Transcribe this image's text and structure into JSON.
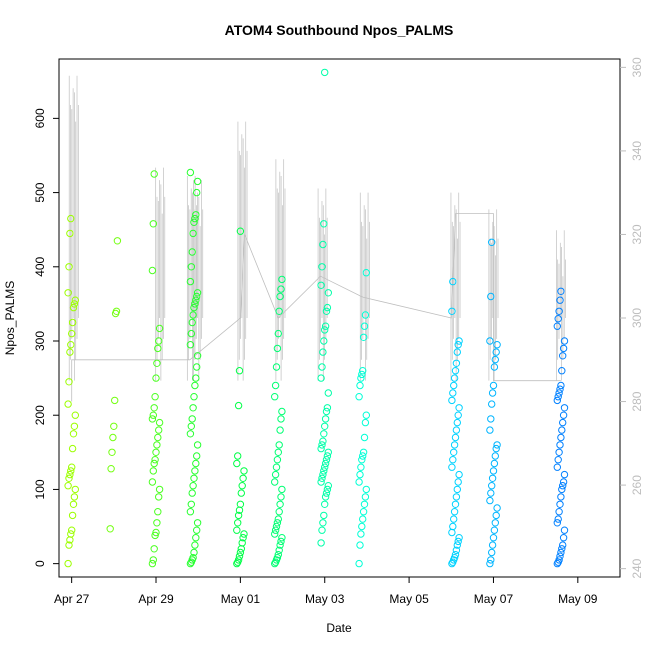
{
  "chart_data": {
    "type": "scatter",
    "title": "ATOM4 Southbound Npos_PALMS",
    "xlabel": "Date",
    "ylabel": "Npos_PALMS",
    "x_ticks": [
      "Apr 27",
      "Apr 29",
      "May 01",
      "May 03",
      "May 05",
      "May 07",
      "May 09"
    ],
    "y_ticks": [
      0,
      100,
      200,
      300,
      400,
      500,
      600
    ],
    "y2_ticks": [
      240,
      260,
      280,
      300,
      320,
      340,
      360
    ],
    "xlim_days": [
      26.7,
      40.0
    ],
    "ylim": [
      -18,
      680
    ],
    "y2lim": [
      238,
      362
    ],
    "grid": false,
    "legend": "none",
    "scatter_series": {
      "name": "Npos_PALMS",
      "marker": "open-circle",
      "color_gradient": [
        "#9cff00",
        "#00ff40",
        "#00ffff",
        "#0080ff"
      ],
      "clusters": [
        {
          "x": "Apr 27",
          "x_day": 27.0,
          "y": [
            0,
            25,
            32,
            40,
            45,
            65,
            80,
            90,
            100,
            105,
            115,
            120,
            125,
            130,
            155,
            175,
            185,
            200,
            215,
            245,
            285,
            295,
            310,
            325,
            345,
            350,
            355,
            365,
            400,
            445,
            465
          ]
        },
        {
          "x": "Apr 28",
          "x_day": 28.0,
          "y": [
            47,
            128,
            150,
            170,
            185,
            220,
            337,
            340,
            435
          ]
        },
        {
          "x": "Apr 29",
          "x_day": 29.0,
          "y": [
            0,
            5,
            20,
            38,
            42,
            55,
            70,
            90,
            100,
            110,
            125,
            135,
            140,
            150,
            160,
            170,
            180,
            190,
            195,
            200,
            210,
            225,
            250,
            270,
            290,
            300,
            317,
            395,
            458,
            525
          ]
        },
        {
          "x": "Apr 30",
          "x_day": 29.9,
          "y": [
            0,
            2,
            5,
            8,
            15,
            25,
            35,
            45,
            55,
            70,
            80,
            95,
            105,
            115,
            125,
            135,
            145,
            160,
            175,
            185,
            195,
            210,
            225,
            240,
            250,
            265,
            280,
            295,
            310,
            325,
            335,
            345,
            350,
            355,
            360,
            365,
            380,
            400,
            420,
            445,
            460,
            465,
            470,
            500,
            515,
            527
          ]
        },
        {
          "x": "May 01",
          "x_day": 31.0,
          "y": [
            0,
            2,
            5,
            10,
            15,
            20,
            28,
            35,
            40,
            45,
            55,
            65,
            72,
            80,
            95,
            105,
            115,
            125,
            135,
            145,
            213,
            260,
            448
          ]
        },
        {
          "x": "May 02",
          "x_day": 31.9,
          "y": [
            0,
            2,
            5,
            8,
            12,
            18,
            25,
            30,
            35,
            40,
            45,
            50,
            55,
            60,
            70,
            80,
            90,
            100,
            110,
            120,
            130,
            140,
            150,
            160,
            180,
            195,
            205,
            225,
            240,
            265,
            290,
            310,
            340,
            360,
            370,
            383
          ]
        },
        {
          "x": "May 03",
          "x_day": 33.0,
          "y": [
            28,
            45,
            55,
            65,
            80,
            90,
            95,
            100,
            105,
            110,
            115,
            120,
            125,
            130,
            135,
            140,
            145,
            150,
            155,
            160,
            165,
            175,
            185,
            195,
            205,
            210,
            230,
            250,
            265,
            285,
            300,
            315,
            320,
            340,
            345,
            365,
            375,
            400,
            430,
            458,
            662
          ]
        },
        {
          "x": "May 04",
          "x_day": 33.9,
          "y": [
            0,
            25,
            40,
            50,
            60,
            70,
            80,
            90,
            100,
            110,
            120,
            130,
            140,
            145,
            150,
            170,
            190,
            200,
            225,
            240,
            250,
            255,
            260,
            305,
            320,
            335,
            392
          ]
        },
        {
          "x": "May 06",
          "x_day": 36.1,
          "y": [
            0,
            2,
            5,
            8,
            12,
            18,
            25,
            30,
            35,
            42,
            50,
            60,
            70,
            80,
            90,
            100,
            110,
            120,
            130,
            140,
            150,
            160,
            170,
            180,
            190,
            200,
            210,
            220,
            230,
            240,
            250,
            260,
            270,
            285,
            295,
            300,
            340,
            380
          ]
        },
        {
          "x": "May 07",
          "x_day": 37.0,
          "y": [
            0,
            5,
            15,
            25,
            35,
            45,
            55,
            65,
            75,
            85,
            95,
            105,
            115,
            125,
            135,
            145,
            155,
            160,
            180,
            195,
            215,
            230,
            240,
            265,
            275,
            285,
            295,
            300,
            360,
            433
          ]
        },
        {
          "x": "May 09",
          "x_day": 38.6,
          "y": [
            0,
            2,
            5,
            10,
            15,
            20,
            25,
            35,
            45,
            55,
            60,
            70,
            80,
            90,
            100,
            105,
            110,
            120,
            130,
            140,
            150,
            160,
            170,
            180,
            190,
            200,
            210,
            220,
            225,
            230,
            235,
            240,
            260,
            280,
            290,
            300,
            320,
            330,
            340,
            355,
            367
          ]
        }
      ]
    },
    "line_series": {
      "name": "secondary axis",
      "color": "#bfbfbf",
      "axis": "right",
      "points": [
        {
          "x_day": 27.0,
          "y2": 280
        },
        {
          "x_day": 27.0,
          "y2": 290
        },
        {
          "x_day": 28.0,
          "y2": 290
        },
        {
          "x_day": 29.1,
          "y2": 290
        },
        {
          "x_day": 29.8,
          "y2": 290
        },
        {
          "x_day": 31.0,
          "y2": 300
        },
        {
          "x_day": 31.1,
          "y2": 320
        },
        {
          "x_day": 31.9,
          "y2": 300
        },
        {
          "x_day": 32.9,
          "y2": 310
        },
        {
          "x_day": 33.9,
          "y2": 305
        },
        {
          "x_day": 36.0,
          "y2": 300
        },
        {
          "x_day": 36.1,
          "y2": 325
        },
        {
          "x_day": 37.0,
          "y2": 325
        },
        {
          "x_day": 37.0,
          "y2": 285
        },
        {
          "x_day": 38.6,
          "y2": 285
        }
      ],
      "spike_tops": [
        {
          "x_day": 27.05,
          "y2": 358
        },
        {
          "x_day": 29.1,
          "y2": 336
        },
        {
          "x_day": 29.85,
          "y2": 334
        },
        {
          "x_day": 30.0,
          "y2": 333
        },
        {
          "x_day": 31.05,
          "y2": 347
        },
        {
          "x_day": 31.95,
          "y2": 338
        },
        {
          "x_day": 32.95,
          "y2": 331
        },
        {
          "x_day": 33.95,
          "y2": 330
        },
        {
          "x_day": 36.1,
          "y2": 330
        },
        {
          "x_day": 37.0,
          "y2": 326
        },
        {
          "x_day": 38.6,
          "y2": 321
        }
      ]
    }
  }
}
